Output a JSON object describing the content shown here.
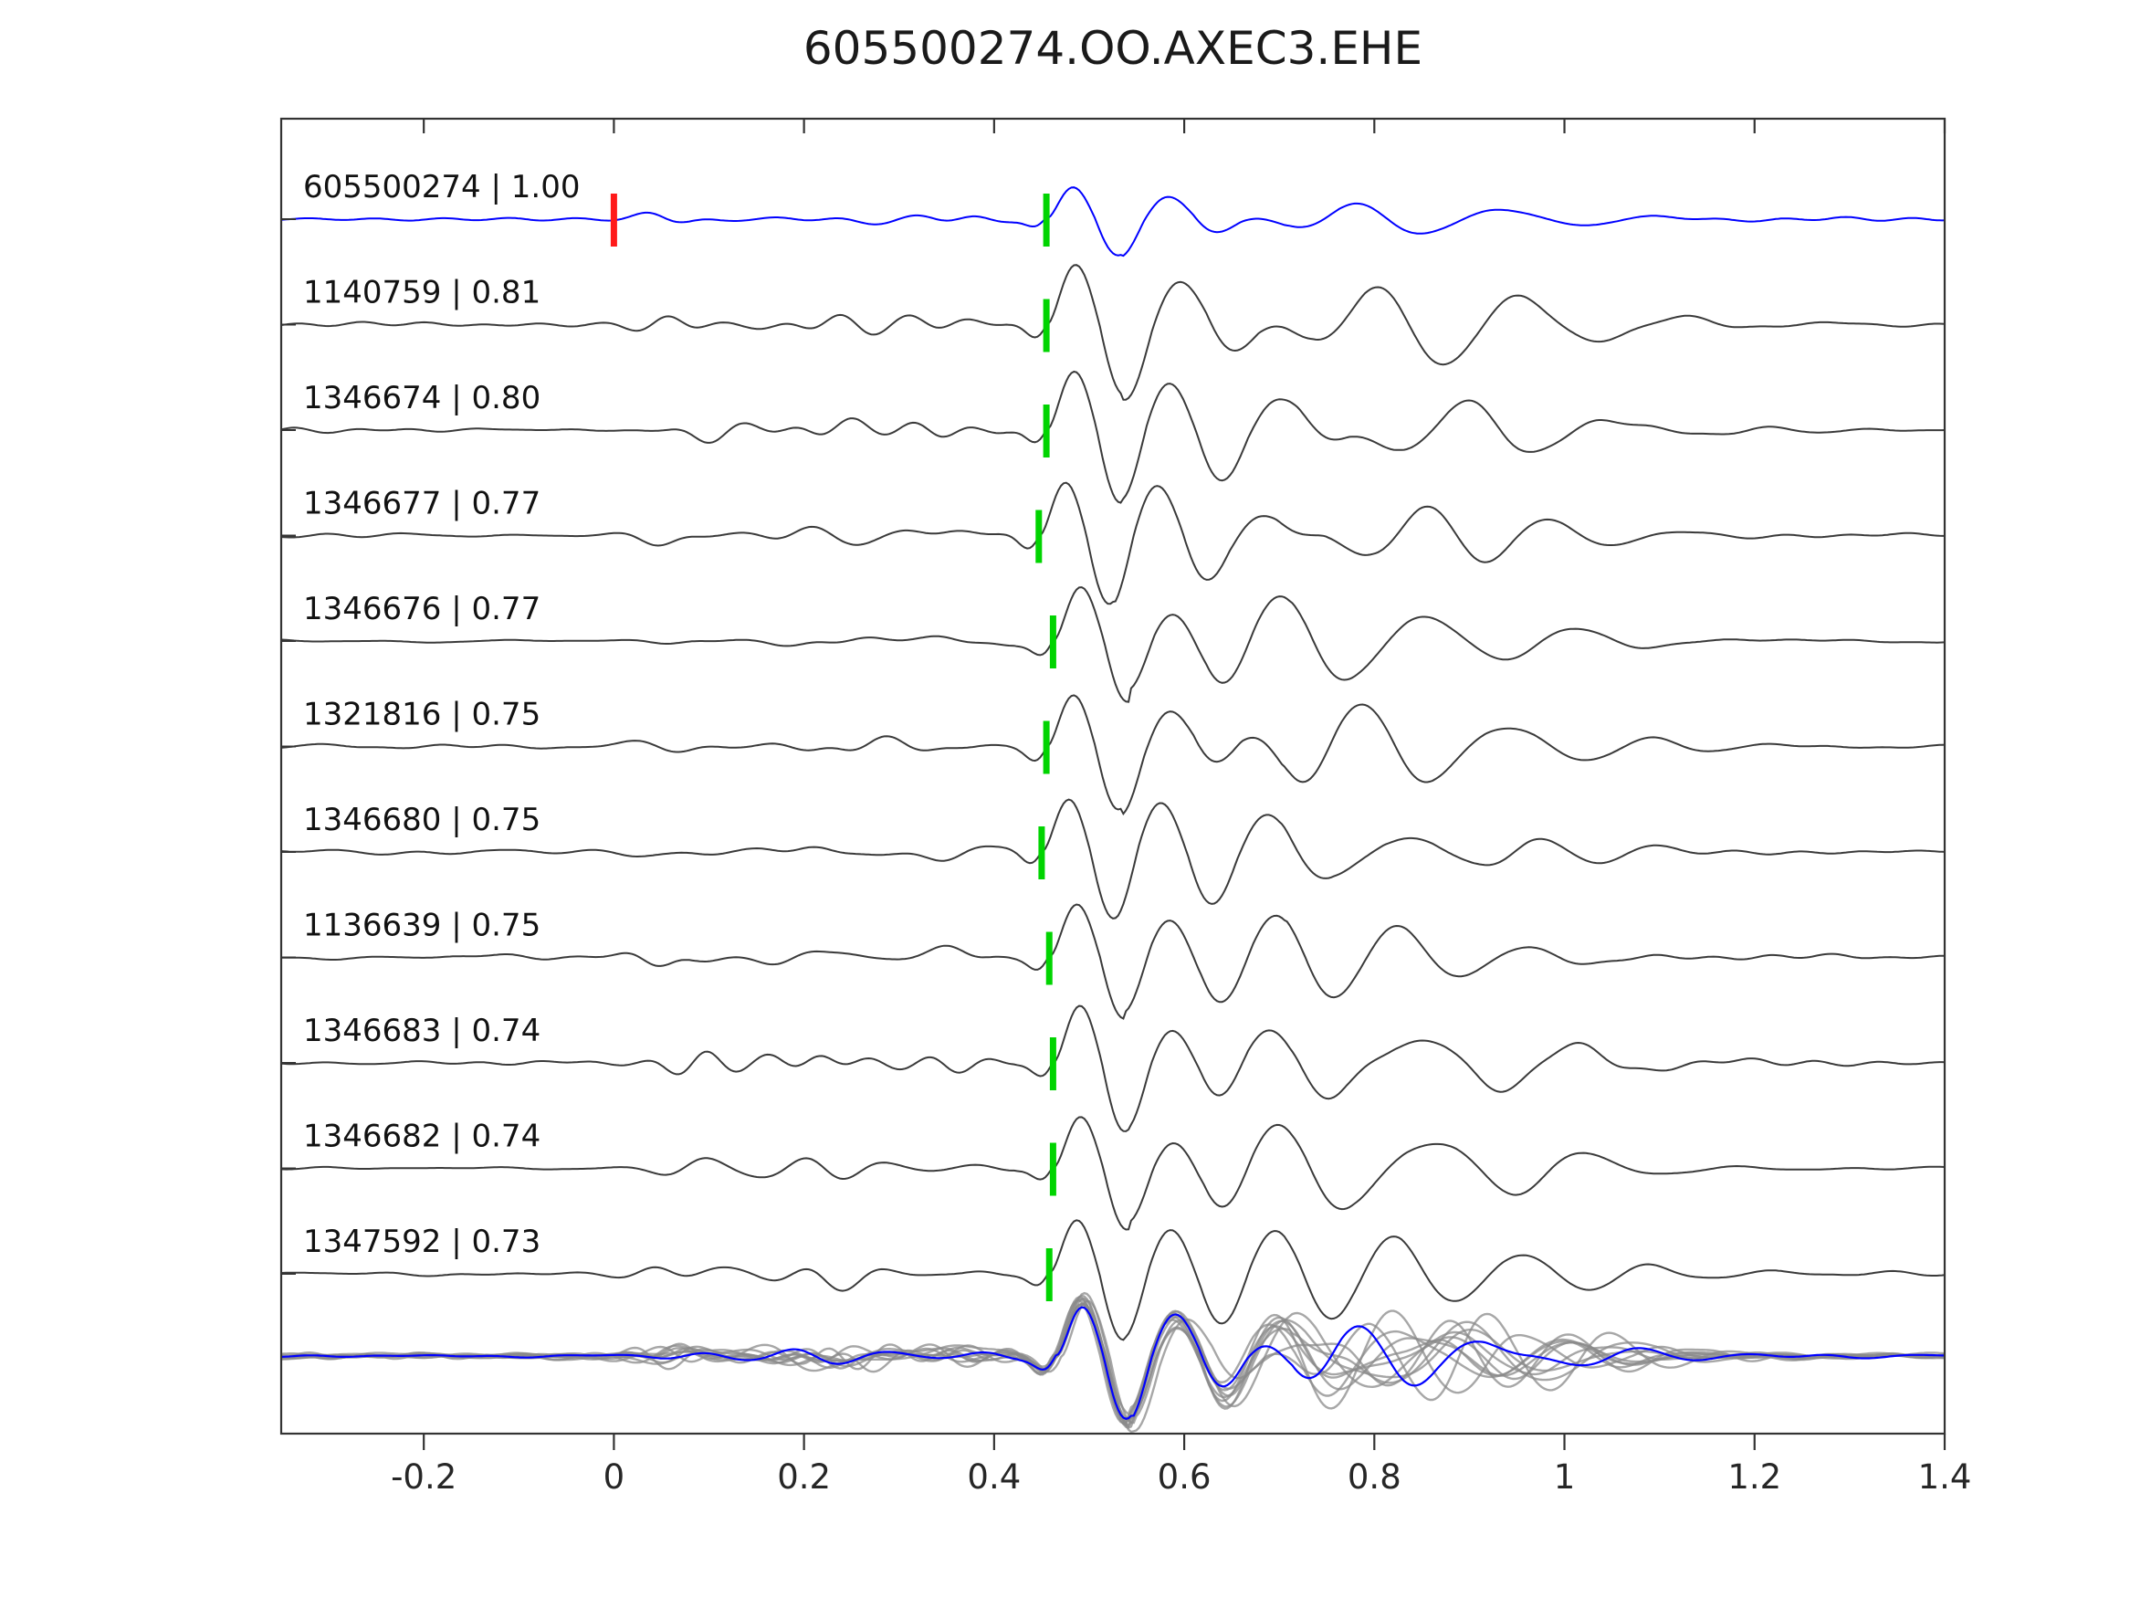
{
  "figure": {
    "title": "605500274.OO.AXEC3.EHE"
  },
  "chart_data": {
    "type": "line",
    "title": "605500274.OO.AXEC3.EHE",
    "xlabel": "",
    "ylabel": "",
    "xlim": [
      -0.35,
      1.4
    ],
    "xticks": [
      -0.2,
      0,
      0.2,
      0.4,
      0.6,
      0.8,
      1,
      1.2,
      1.4
    ],
    "xtick_labels": [
      "-0.2",
      "0",
      "0.2",
      "0.4",
      "0.6",
      "0.8",
      "1",
      "1.2",
      "1.4"
    ],
    "grid": false,
    "legend": "none",
    "colors": {
      "axis": "#333333",
      "template_trace": "#0000ff",
      "detection_trace": "#3a3a3a",
      "pick_marker": "#00d400",
      "origin_marker": "#ff1a1a",
      "overlay_trace": "#8a8a8a",
      "label_text": "#111111",
      "tick_text": "#262626"
    },
    "traces": [
      {
        "label": "605500274 | 1.00",
        "event_id": "605500274",
        "correlation": 1.0,
        "role": "template",
        "pick_time": 0.455,
        "origin_marker_time": 0.0
      },
      {
        "label": "1140759 | 0.81",
        "event_id": "1140759",
        "correlation": 0.81,
        "role": "detection",
        "pick_time": 0.455
      },
      {
        "label": "1346674 | 0.80",
        "event_id": "1346674",
        "correlation": 0.8,
        "role": "detection",
        "pick_time": 0.455
      },
      {
        "label": "1346677 | 0.77",
        "event_id": "1346677",
        "correlation": 0.77,
        "role": "detection",
        "pick_time": 0.447
      },
      {
        "label": "1346676 | 0.77",
        "event_id": "1346676",
        "correlation": 0.77,
        "role": "detection",
        "pick_time": 0.462
      },
      {
        "label": "1321816 | 0.75",
        "event_id": "1321816",
        "correlation": 0.75,
        "role": "detection",
        "pick_time": 0.455
      },
      {
        "label": "1346680 | 0.75",
        "event_id": "1346680",
        "correlation": 0.75,
        "role": "detection",
        "pick_time": 0.45
      },
      {
        "label": "1136639 | 0.75",
        "event_id": "1136639",
        "correlation": 0.75,
        "role": "detection",
        "pick_time": 0.458
      },
      {
        "label": "1346683 | 0.74",
        "event_id": "1346683",
        "correlation": 0.74,
        "role": "detection",
        "pick_time": 0.462
      },
      {
        "label": "1346682 | 0.74",
        "event_id": "1346682",
        "correlation": 0.74,
        "role": "detection",
        "pick_time": 0.462
      },
      {
        "label": "1347592 | 0.73",
        "event_id": "1347592",
        "correlation": 0.73,
        "role": "detection",
        "pick_time": 0.458
      }
    ],
    "overlay_row": {
      "description": "aligned overlay of all detection waveforms (gray) with template waveform (blue)",
      "gray_trace_count": 10,
      "includes_template": true,
      "align_time": 0.465
    }
  }
}
